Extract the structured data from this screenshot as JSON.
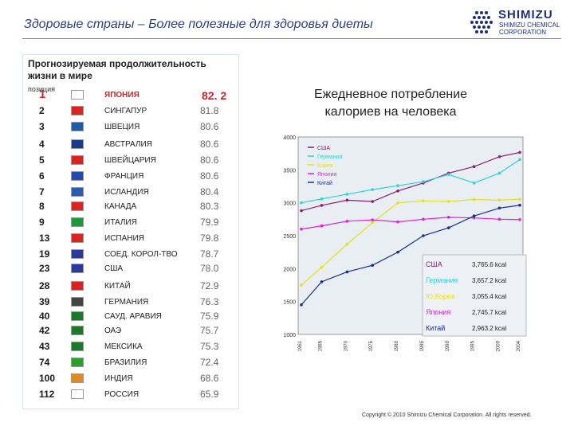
{
  "header": {
    "title": "Здоровые страны – Более полезные для здоровья диеты",
    "logo_name": "SHIMIZU",
    "logo_sub": "SHIMIZU CHEMICAL CORPORATION"
  },
  "table": {
    "heading": "Прогнозируемая продолжительность жизни в мире",
    "position_label": "позиция",
    "rows": [
      {
        "rank": "1",
        "country": "ЯПОНИЯ",
        "life": "82. 2"
      },
      {
        "rank": "2",
        "country": "СИНГАПУР",
        "life": "81.8"
      },
      {
        "rank": "3",
        "country": "ШВЕЦИЯ",
        "life": "80.6"
      },
      {
        "rank": "4",
        "country": "АВСТРАЛИЯ",
        "life": "80.6"
      },
      {
        "rank": "5",
        "country": "ШВЕЙЦАРИЯ",
        "life": "80.6"
      },
      {
        "rank": "6",
        "country": "ФРАНЦИЯ",
        "life": "80.6"
      },
      {
        "rank": "7",
        "country": "ИСЛАНДИЯ",
        "life": "80.4"
      },
      {
        "rank": "8",
        "country": "КАНАДА",
        "life": "80.3"
      },
      {
        "rank": "9",
        "country": "ИТАЛИЯ",
        "life": "79.9"
      },
      {
        "rank": "13",
        "country": "ИСПАНИЯ",
        "life": "79.8"
      },
      {
        "rank": "19",
        "country": "СОЕД. КОРОЛ-ТВО",
        "life": "78.7"
      },
      {
        "rank": "23",
        "country": "США",
        "life": "78.0"
      },
      {
        "rank": "28",
        "country": "КИТАЙ",
        "life": "72.9"
      },
      {
        "rank": "39",
        "country": "ГЕРМАНИЯ",
        "life": "76.3"
      },
      {
        "rank": "40",
        "country": "САУД. АРАВИЯ",
        "life": "75.9"
      },
      {
        "rank": "42",
        "country": "ОАЭ",
        "life": "75.7"
      },
      {
        "rank": "43",
        "country": "МЕКСИКА",
        "life": "75.3"
      },
      {
        "rank": "74",
        "country": "БРАЗИЛИЯ",
        "life": "72.4"
      },
      {
        "rank": "100",
        "country": "ИНДИЯ",
        "life": "68.6"
      },
      {
        "rank": "112",
        "country": "РОССИЯ",
        "life": "65.9"
      }
    ]
  },
  "chart_title": "Ежедневное потребление калориев на человека",
  "chart_data": {
    "type": "line",
    "title": "Ежедневное потребление калориев на человека",
    "ylabel": "kcal",
    "ylim": [
      1000,
      4000
    ],
    "yticks": [
      1000,
      1500,
      2000,
      2500,
      3000,
      3500,
      4000
    ],
    "x": [
      1961,
      1965,
      1970,
      1975,
      1980,
      1985,
      1990,
      1995,
      2000,
      2004
    ],
    "series": [
      {
        "name": "США",
        "values": [
          2880,
          2960,
          3040,
          3020,
          3180,
          3300,
          3450,
          3550,
          3700,
          3765
        ],
        "color": "#8b1f6e",
        "end_label": "3,765.6 kcal"
      },
      {
        "name": "Германия",
        "values": [
          3000,
          3060,
          3130,
          3200,
          3260,
          3320,
          3430,
          3300,
          3450,
          3657
        ],
        "color": "#2ed3d8",
        "end_label": "3,657.2 kcal"
      },
      {
        "name": "Ю.Корея",
        "values": [
          1750,
          2020,
          2370,
          2700,
          3000,
          3030,
          3020,
          3050,
          3040,
          3055
        ],
        "color": "#e6e21a",
        "end_label": "3,055.4 kcal"
      },
      {
        "name": "Япония",
        "values": [
          2600,
          2650,
          2720,
          2740,
          2710,
          2750,
          2780,
          2770,
          2750,
          2745
        ],
        "color": "#e022d8",
        "end_label": "2,745.7 kcal"
      },
      {
        "name": "Китай",
        "values": [
          1450,
          1800,
          1950,
          2050,
          2250,
          2500,
          2620,
          2800,
          2920,
          2963
        ],
        "color": "#1b2d8a",
        "end_label": "2,963.2 kcal"
      }
    ],
    "legend": [
      "США",
      "Германия",
      "Корея",
      "Япония",
      "Китай"
    ],
    "legend_position": "top-left"
  },
  "copyright": "Copyright © 2010 Shimizu Chemical Corporation. All rights reserved."
}
